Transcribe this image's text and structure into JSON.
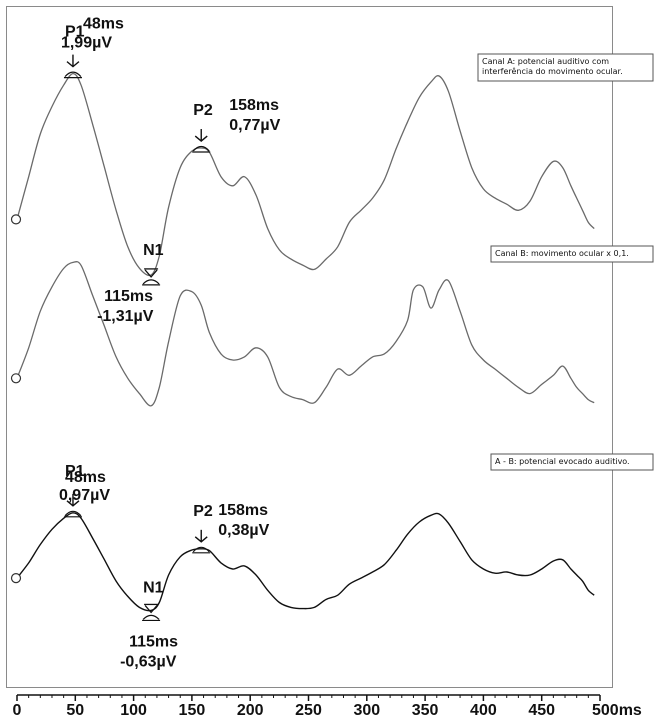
{
  "chart_data": {
    "type": "line",
    "x_unit": "ms",
    "xlim": [
      0,
      500
    ],
    "x_ticks": [
      "0",
      "50",
      "100",
      "150",
      "200",
      "250",
      "300",
      "350",
      "400",
      "450",
      "500ms"
    ],
    "series": [
      {
        "name": "Canal A: potencial auditivo com interferência do movimento ocular.",
        "x": [
          0,
          10,
          20,
          30,
          40,
          48,
          55,
          65,
          75,
          85,
          95,
          105,
          115,
          122,
          130,
          140,
          150,
          158,
          165,
          175,
          185,
          195,
          205,
          215,
          225,
          235,
          245,
          255,
          265,
          275,
          285,
          295,
          305,
          315,
          325,
          335,
          345,
          355,
          362,
          370,
          380,
          390,
          400,
          410,
          420,
          430,
          440,
          450,
          460,
          468,
          475,
          480,
          485,
          490,
          495
        ],
        "y": [
          -0.4,
          0.3,
          1.0,
          1.45,
          1.8,
          1.99,
          1.8,
          1.15,
          0.45,
          -0.25,
          -0.85,
          -1.2,
          -1.31,
          -1.0,
          -0.2,
          0.45,
          0.72,
          0.77,
          0.7,
          0.3,
          0.15,
          0.3,
          0.0,
          -0.55,
          -0.9,
          -1.05,
          -1.15,
          -1.22,
          -1.05,
          -0.85,
          -0.45,
          -0.25,
          -0.05,
          0.25,
          0.75,
          1.2,
          1.6,
          1.85,
          1.95,
          1.7,
          1.05,
          0.45,
          0.1,
          -0.05,
          -0.15,
          -0.25,
          -0.1,
          0.3,
          0.55,
          0.45,
          0.15,
          -0.05,
          -0.25,
          -0.45,
          -0.55
        ]
      },
      {
        "name": "Canal B: movimento ocular x 0,1.",
        "x": [
          0,
          10,
          20,
          30,
          40,
          48,
          55,
          65,
          75,
          85,
          95,
          105,
          115,
          122,
          130,
          140,
          150,
          158,
          165,
          175,
          185,
          195,
          205,
          215,
          225,
          235,
          245,
          255,
          265,
          275,
          285,
          295,
          305,
          315,
          325,
          335,
          340,
          348,
          355,
          362,
          370,
          380,
          390,
          400,
          410,
          420,
          430,
          440,
          450,
          460,
          468,
          475,
          480,
          485,
          490,
          495
        ],
        "y": [
          -0.3,
          0.2,
          0.8,
          1.2,
          1.5,
          1.6,
          1.55,
          1.05,
          0.55,
          0.05,
          -0.3,
          -0.55,
          -0.75,
          -0.45,
          0.3,
          1.05,
          1.12,
          0.9,
          0.45,
          0.1,
          0.0,
          0.05,
          0.2,
          0.05,
          -0.45,
          -0.6,
          -0.65,
          -0.7,
          -0.45,
          -0.15,
          -0.25,
          -0.1,
          0.05,
          0.1,
          0.3,
          0.65,
          1.15,
          1.2,
          0.85,
          1.15,
          1.3,
          0.8,
          0.25,
          0.0,
          -0.15,
          -0.3,
          -0.45,
          -0.55,
          -0.4,
          -0.25,
          -0.1,
          -0.3,
          -0.45,
          -0.55,
          -0.65,
          -0.7
        ]
      },
      {
        "name": "A - B: potencial evocado auditivo.",
        "x": [
          0,
          10,
          20,
          30,
          40,
          48,
          55,
          65,
          75,
          85,
          95,
          105,
          115,
          122,
          130,
          140,
          150,
          158,
          165,
          175,
          185,
          195,
          205,
          215,
          225,
          235,
          245,
          255,
          265,
          275,
          285,
          295,
          305,
          315,
          325,
          335,
          345,
          355,
          362,
          370,
          380,
          390,
          400,
          410,
          420,
          430,
          440,
          450,
          460,
          468,
          475,
          480,
          485,
          490,
          495
        ],
        "y": [
          -0.1,
          0.15,
          0.45,
          0.7,
          0.88,
          0.97,
          0.88,
          0.55,
          0.2,
          -0.15,
          -0.4,
          -0.58,
          -0.63,
          -0.5,
          -0.05,
          0.25,
          0.36,
          0.38,
          0.35,
          0.15,
          0.05,
          0.1,
          -0.05,
          -0.3,
          -0.5,
          -0.58,
          -0.6,
          -0.58,
          -0.45,
          -0.38,
          -0.2,
          -0.1,
          0.0,
          0.12,
          0.35,
          0.62,
          0.82,
          0.93,
          0.95,
          0.8,
          0.5,
          0.2,
          0.05,
          -0.02,
          0.0,
          -0.05,
          -0.05,
          0.05,
          0.18,
          0.2,
          0.05,
          -0.05,
          -0.15,
          -0.3,
          -0.38
        ]
      }
    ],
    "annotations": [
      {
        "peak": "P1",
        "latency": "48ms",
        "amplitude": "1,99µV",
        "series": 0,
        "x": 48,
        "y": 1.99
      },
      {
        "peak": "N1",
        "latency": "115ms",
        "amplitude": "-1,31µV",
        "series": 0,
        "x": 115,
        "y": -1.31
      },
      {
        "peak": "P2",
        "latency": "158ms",
        "amplitude": "0,77µV",
        "series": 0,
        "x": 158,
        "y": 0.77
      },
      {
        "peak": "P1",
        "latency": "48ms",
        "amplitude": "0,97µV",
        "series": 2,
        "x": 48,
        "y": 0.97
      },
      {
        "peak": "N1",
        "latency": "115ms",
        "amplitude": "-0,63µV",
        "series": 2,
        "x": 115,
        "y": -0.63
      },
      {
        "peak": "P2",
        "latency": "158ms",
        "amplitude": "0,38µV",
        "series": 2,
        "x": 158,
        "y": 0.38
      }
    ],
    "colors": {
      "trace_a": "#6a6a6a",
      "trace_b": "#6a6a6a",
      "trace_ab": "#111111"
    }
  }
}
